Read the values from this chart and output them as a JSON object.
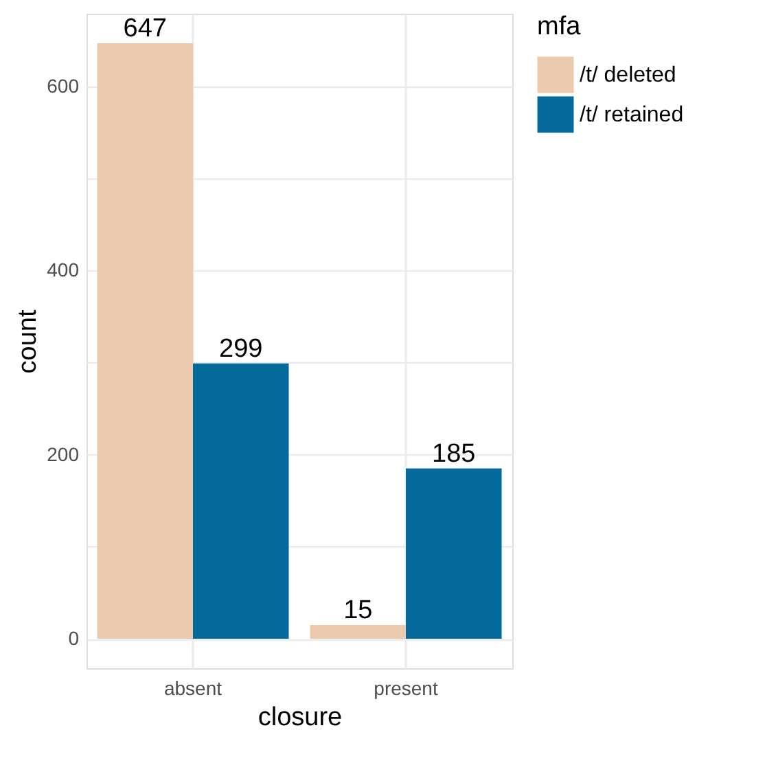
{
  "chart_data": {
    "type": "bar",
    "xlabel": "closure",
    "ylabel": "count",
    "legend_title": "mfa",
    "categories": [
      "absent",
      "present"
    ],
    "series": [
      {
        "name": "/t/ deleted",
        "color": "#ebcaad",
        "values": [
          647,
          15
        ]
      },
      {
        "name": "/t/ retained",
        "color": "#036a9b",
        "values": [
          299,
          185
        ]
      }
    ],
    "ylim": [
      -32,
      679
    ],
    "yticks": [
      0,
      {
        "value": 100,
        "label": null
      },
      200,
      {
        "value": 300,
        "label": null
      },
      400,
      {
        "value": 500,
        "label": null
      },
      600
    ],
    "grid": true,
    "legend": "right",
    "data_labels": true
  }
}
